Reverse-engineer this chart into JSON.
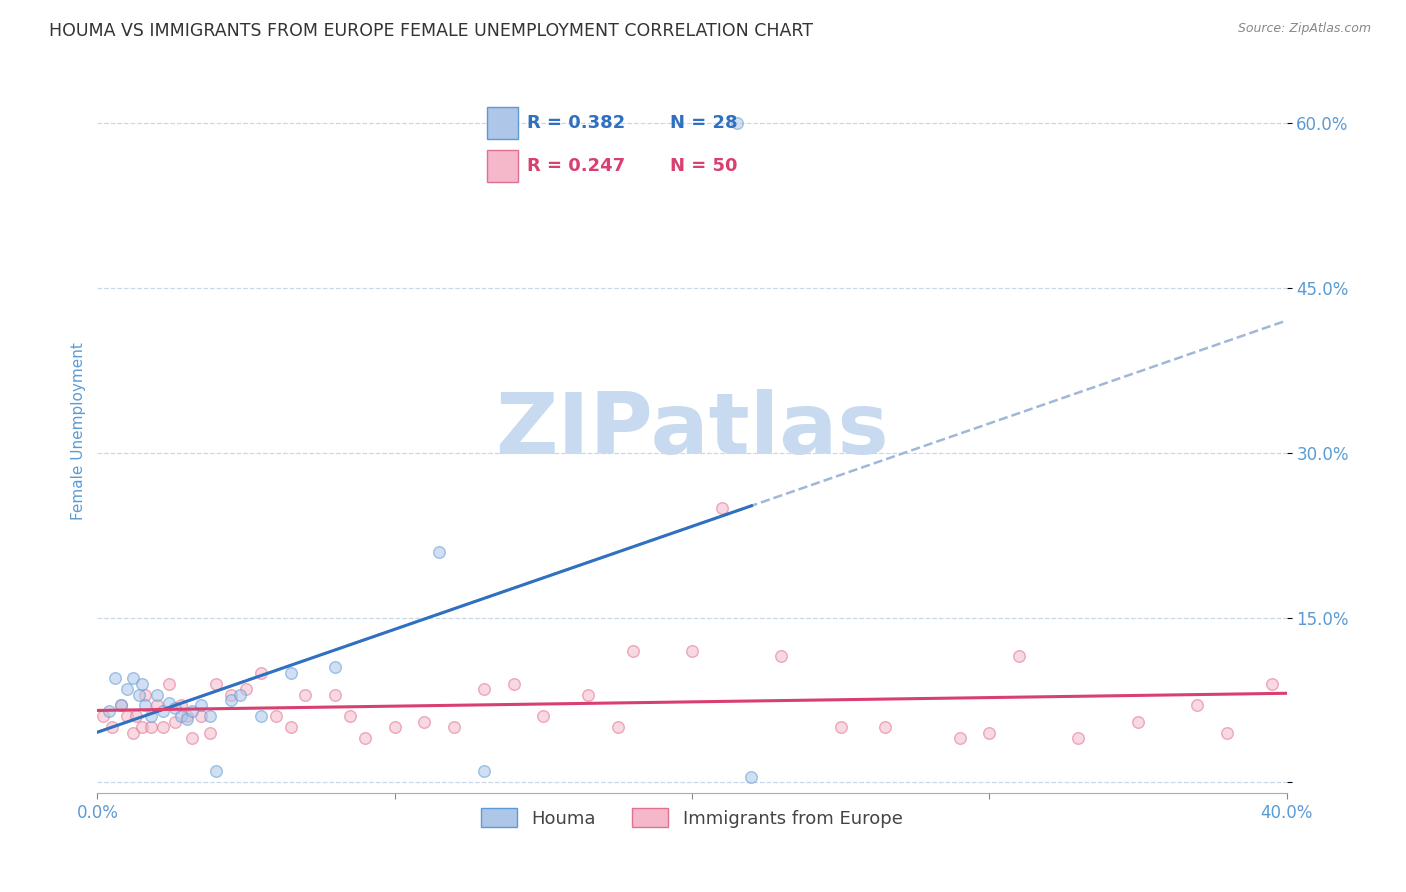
{
  "title": "HOUMA VS IMMIGRANTS FROM EUROPE FEMALE UNEMPLOYMENT CORRELATION CHART",
  "source": "Source: ZipAtlas.com",
  "ylabel": "Female Unemployment",
  "xlim": [
    0.0,
    0.4
  ],
  "ylim": [
    -0.01,
    0.65
  ],
  "yticks": [
    0.0,
    0.15,
    0.3,
    0.45,
    0.6
  ],
  "ytick_labels": [
    "",
    "15.0%",
    "30.0%",
    "45.0%",
    "60.0%"
  ],
  "xticks": [
    0.0,
    0.1,
    0.2,
    0.3,
    0.4
  ],
  "xtick_labels": [
    "0.0%",
    "",
    "",
    "",
    "40.0%"
  ],
  "houma_color": "#aec6e8",
  "houma_edge_color": "#5b9bd5",
  "immigrants_color": "#f4b8ca",
  "immigrants_edge_color": "#e07090",
  "trend_houma_solid_color": "#3070c0",
  "trend_houma_dashed_color": "#a0b8d8",
  "trend_immigrants_color": "#d84070",
  "legend_R_houma": "R = 0.382",
  "legend_N_houma": "N = 28",
  "legend_R_immigrants": "R = 0.247",
  "legend_N_immigrants": "N = 50",
  "legend_label_houma": "Houma",
  "legend_label_immigrants": "Immigrants from Europe",
  "marker_size": 70,
  "alpha_scatter": 0.55,
  "watermark_text": "ZIPatlas",
  "watermark_color": "#c8daf0",
  "axis_label_color": "#5b9bd5",
  "tick_label_color": "#5b9bd5",
  "houma_x": [
    0.004,
    0.006,
    0.008,
    0.01,
    0.012,
    0.014,
    0.015,
    0.016,
    0.018,
    0.02,
    0.022,
    0.024,
    0.026,
    0.028,
    0.03,
    0.032,
    0.035,
    0.038,
    0.04,
    0.045,
    0.048,
    0.055,
    0.065,
    0.08,
    0.115,
    0.13,
    0.215,
    0.22
  ],
  "houma_y": [
    0.065,
    0.095,
    0.07,
    0.085,
    0.095,
    0.08,
    0.09,
    0.07,
    0.06,
    0.08,
    0.065,
    0.072,
    0.068,
    0.06,
    0.058,
    0.065,
    0.07,
    0.06,
    0.01,
    0.075,
    0.08,
    0.06,
    0.1,
    0.105,
    0.21,
    0.01,
    0.6,
    0.005
  ],
  "immigrants_x": [
    0.002,
    0.005,
    0.008,
    0.01,
    0.012,
    0.013,
    0.015,
    0.016,
    0.018,
    0.02,
    0.022,
    0.024,
    0.026,
    0.028,
    0.03,
    0.032,
    0.035,
    0.038,
    0.04,
    0.045,
    0.05,
    0.055,
    0.06,
    0.065,
    0.07,
    0.08,
    0.085,
    0.09,
    0.1,
    0.11,
    0.12,
    0.13,
    0.14,
    0.15,
    0.165,
    0.175,
    0.18,
    0.2,
    0.21,
    0.23,
    0.25,
    0.265,
    0.29,
    0.3,
    0.31,
    0.33,
    0.35,
    0.37,
    0.38,
    0.395
  ],
  "immigrants_y": [
    0.06,
    0.05,
    0.07,
    0.06,
    0.045,
    0.06,
    0.05,
    0.08,
    0.05,
    0.07,
    0.05,
    0.09,
    0.055,
    0.07,
    0.06,
    0.04,
    0.06,
    0.045,
    0.09,
    0.08,
    0.085,
    0.1,
    0.06,
    0.05,
    0.08,
    0.08,
    0.06,
    0.04,
    0.05,
    0.055,
    0.05,
    0.085,
    0.09,
    0.06,
    0.08,
    0.05,
    0.12,
    0.12,
    0.25,
    0.115,
    0.05,
    0.05,
    0.04,
    0.045,
    0.115,
    0.04,
    0.055,
    0.07,
    0.045,
    0.09
  ],
  "background_color": "#ffffff",
  "grid_color": "#c8d8e8",
  "title_fontsize": 12.5,
  "label_fontsize": 11,
  "tick_fontsize": 12,
  "legend_fontsize": 13
}
